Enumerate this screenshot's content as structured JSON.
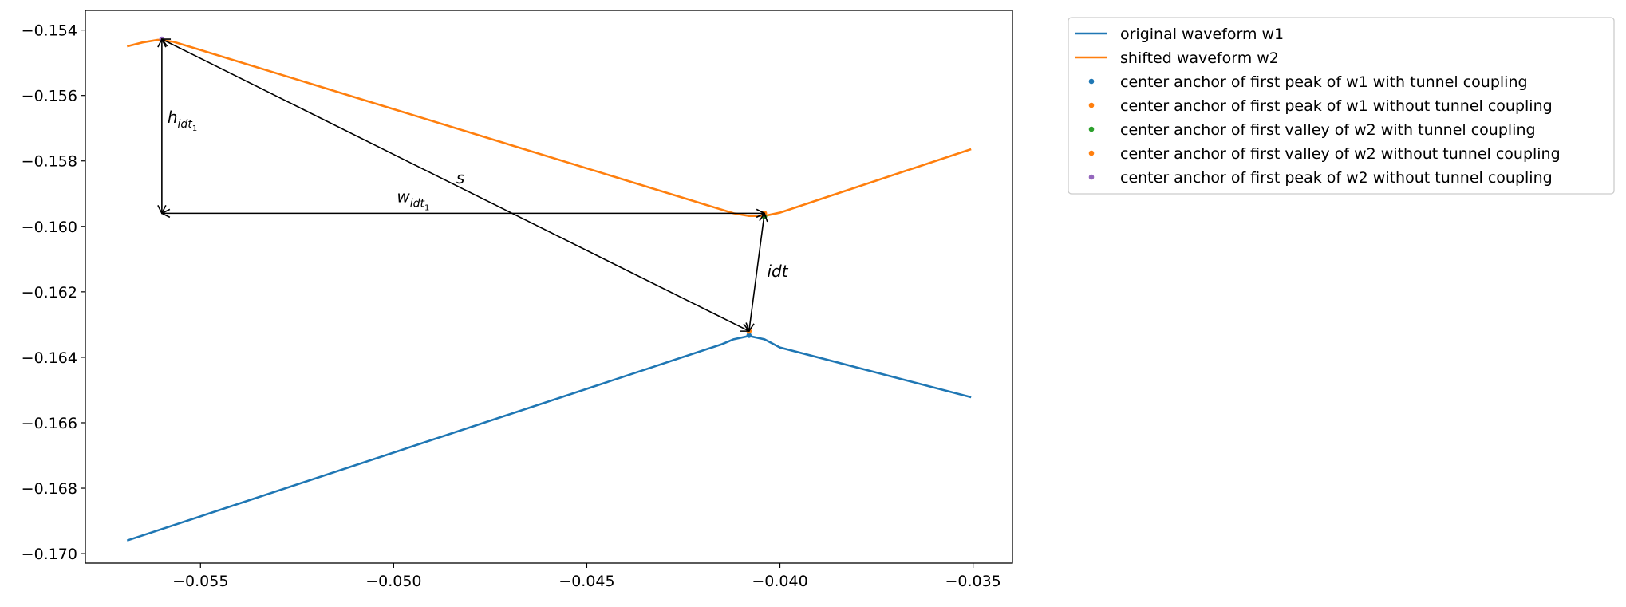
{
  "chart_data": {
    "type": "line",
    "xlim": [
      -0.05798,
      -0.03398
    ],
    "ylim": [
      -0.17029,
      -0.1534
    ],
    "xticks": [
      {
        "value": -0.055,
        "label": "−0.055"
      },
      {
        "value": -0.05,
        "label": "−0.050"
      },
      {
        "value": -0.045,
        "label": "−0.045"
      },
      {
        "value": -0.04,
        "label": "−0.040"
      },
      {
        "value": -0.035,
        "label": "−0.035"
      }
    ],
    "yticks": [
      {
        "value": -0.154,
        "label": "−0.154"
      },
      {
        "value": -0.156,
        "label": "−0.156"
      },
      {
        "value": -0.158,
        "label": "−0.158"
      },
      {
        "value": -0.16,
        "label": "−0.160"
      },
      {
        "value": -0.162,
        "label": "−0.162"
      },
      {
        "value": -0.164,
        "label": "−0.164"
      },
      {
        "value": -0.166,
        "label": "−0.166"
      },
      {
        "value": -0.168,
        "label": "−0.168"
      },
      {
        "value": -0.17,
        "label": "−0.170"
      }
    ],
    "legend": "outside upper right",
    "series": [
      {
        "name": "original waveform w1",
        "kind": "line",
        "color": "#1f77b4",
        "x": [
          -0.0569,
          -0.0415,
          -0.0412,
          -0.0408,
          -0.0404,
          -0.04,
          -0.03505
        ],
        "values": [
          -0.1696,
          -0.1636,
          -0.16345,
          -0.16335,
          -0.16345,
          -0.1637,
          -0.16522
        ]
      },
      {
        "name": "shifted waveform w2",
        "kind": "line",
        "color": "#ff7f0e",
        "x": [
          -0.0569,
          -0.0565,
          -0.0561,
          -0.0557,
          -0.055,
          -0.0412,
          -0.0408,
          -0.0404,
          -0.04,
          -0.03505
        ],
        "values": [
          -0.1545,
          -0.15438,
          -0.1543,
          -0.15436,
          -0.15461,
          -0.1596,
          -0.15968,
          -0.15968,
          -0.15958,
          -0.15764
        ]
      },
      {
        "name": "center anchor of first peak of w1 with tunnel coupling",
        "kind": "scatter",
        "color": "#1f77b4",
        "x": [
          -0.0408
        ],
        "values": [
          -0.16333
        ]
      },
      {
        "name": "center anchor of first peak of w1 without tunnel coupling",
        "kind": "scatter",
        "color": "#ff7f0e",
        "x": [
          -0.0408
        ],
        "values": [
          -0.1632
        ]
      },
      {
        "name": "center anchor of first valley of w2 with tunnel coupling",
        "kind": "scatter",
        "color": "#2ca02c",
        "x": [
          -0.0404
        ],
        "values": [
          -0.1597
        ]
      },
      {
        "name": "center anchor of first valley of w2 without tunnel coupling",
        "kind": "scatter",
        "color": "#ff7f0e",
        "x": [
          -0.0404
        ],
        "values": [
          -0.1596
        ]
      },
      {
        "name": "center anchor of first peak of w2 without tunnel coupling",
        "kind": "scatter",
        "color": "#9467bd",
        "x": [
          -0.056
        ],
        "values": [
          -0.15428
        ]
      }
    ],
    "annotations": [
      {
        "base": "h",
        "sub": "idt",
        "subsub": "1"
      },
      {
        "base": "w",
        "sub": "idt",
        "subsub": "1"
      },
      {
        "base": "s"
      },
      {
        "base": "idt"
      }
    ]
  }
}
